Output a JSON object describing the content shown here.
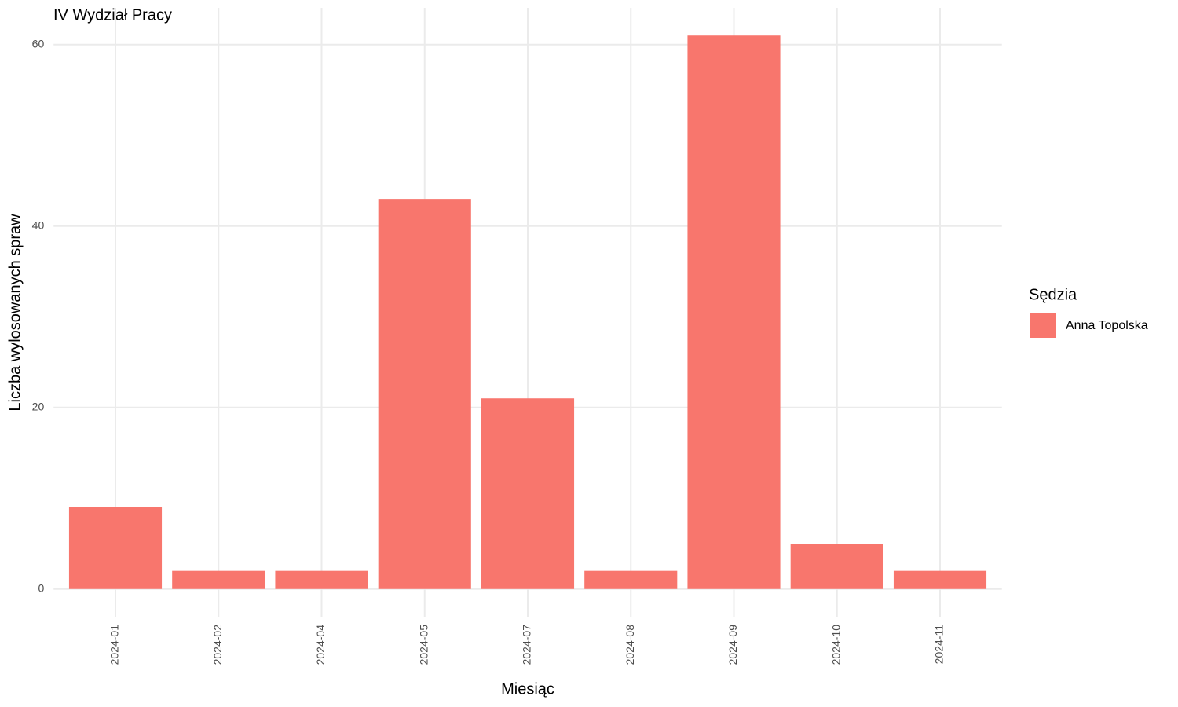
{
  "chart_data": {
    "type": "bar",
    "title": "IV Wydział Pracy",
    "x_label": "Miesiąc",
    "y_label": "Liczba wylosowanych spraw",
    "categories": [
      "2024-01",
      "2024-02",
      "2024-04",
      "2024-05",
      "2024-07",
      "2024-08",
      "2024-09",
      "2024-10",
      "2024-11"
    ],
    "series": [
      {
        "name": "Anna Topolska",
        "color": "#f8766d",
        "values": [
          9,
          2,
          2,
          43,
          21,
          2,
          61,
          5,
          2
        ]
      }
    ],
    "legend_title": "Sędzia",
    "legend_position": "right",
    "ylim": [
      -3.05,
      64.05
    ],
    "yticks": [
      0,
      20,
      40,
      60
    ],
    "grid": true
  }
}
